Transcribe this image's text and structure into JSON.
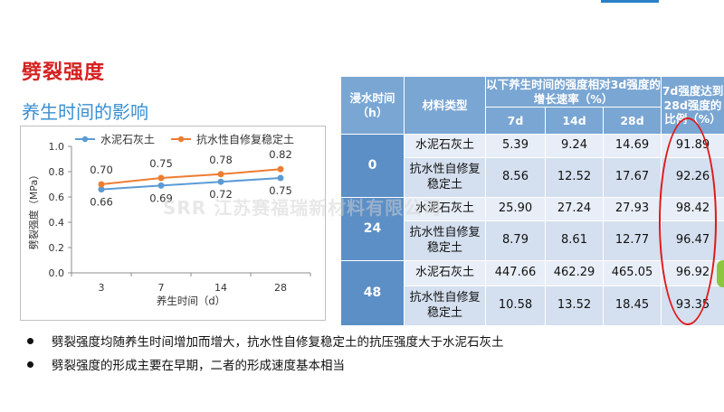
{
  "slide": {
    "title": "劈裂强度",
    "subtitle": "养生时间的影响"
  },
  "watermark": {
    "logo_text": "SRR",
    "company": "江苏赛福瑞新材料有限公司"
  },
  "chart_data": {
    "type": "line",
    "categories": [
      "3",
      "7",
      "14",
      "28"
    ],
    "series": [
      {
        "name": "水泥石灰土",
        "values": [
          0.66,
          0.69,
          0.72,
          0.75
        ],
        "color": "#5b9bd5"
      },
      {
        "name": "抗水性自修复稳定土",
        "values": [
          0.7,
          0.75,
          0.78,
          0.82
        ],
        "color": "#ed7d31"
      }
    ],
    "xlabel": "养生时间（d）",
    "ylabel": "劈裂强度（MPa）",
    "ylim": [
      0,
      1.0
    ],
    "yticks": [
      "0.0",
      "0.2",
      "0.4",
      "0.6",
      "0.8",
      "1.0"
    ],
    "data_labels": {
      "series_0": [
        "0.66",
        "0.69",
        "0.72",
        "0.75"
      ],
      "series_1": [
        "0.70",
        "0.75",
        "0.78",
        "0.82"
      ]
    },
    "legend": "top",
    "grid": false
  },
  "table": {
    "headers": {
      "col_soak": "浸水时间（h）",
      "col_material": "材料类型",
      "col_growth": "以下养生时间的强度相对3d强度的增长速率（%）",
      "col_ratio": "7d强度达到28d强度的比例（%）",
      "sub_7d": "7d",
      "sub_14d": "14d",
      "sub_28d": "28d"
    },
    "groups": [
      {
        "soak": "0",
        "rows": [
          {
            "material": "水泥石灰土",
            "d7": "5.39",
            "d14": "9.24",
            "d28": "14.69",
            "ratio": "91.89"
          },
          {
            "material": "抗水性自修复稳定土",
            "d7": "8.56",
            "d14": "12.52",
            "d28": "17.67",
            "ratio": "92.26"
          }
        ]
      },
      {
        "soak": "24",
        "rows": [
          {
            "material": "水泥石灰土",
            "d7": "25.90",
            "d14": "27.24",
            "d28": "27.93",
            "ratio": "98.42"
          },
          {
            "material": "抗水性自修复稳定土",
            "d7": "8.79",
            "d14": "8.61",
            "d28": "12.77",
            "ratio": "96.47"
          }
        ]
      },
      {
        "soak": "48",
        "rows": [
          {
            "material": "水泥石灰土",
            "d7": "447.66",
            "d14": "462.29",
            "d28": "465.05",
            "ratio": "96.92"
          },
          {
            "material": "抗水性自修复稳定土",
            "d7": "10.58",
            "d14": "13.52",
            "d28": "18.45",
            "ratio": "93.35"
          }
        ]
      }
    ]
  },
  "bullets": [
    "劈裂强度均随养生时间增加而增大，抗水性自修复稳定土的抗压强度大于水泥石灰土",
    "劈裂强度的形成主要在早期，二者的形成速度基本相当"
  ]
}
